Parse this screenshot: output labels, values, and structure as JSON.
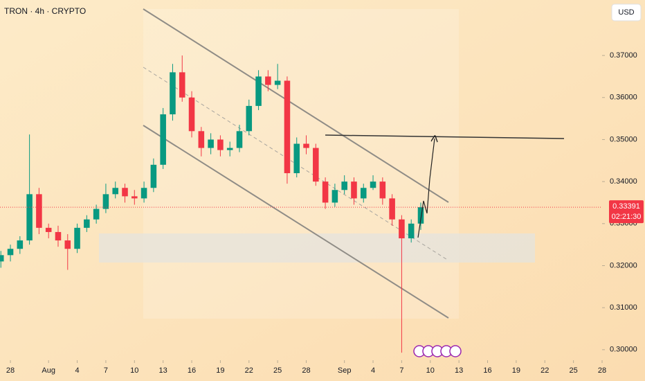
{
  "chart_data": {
    "type": "candlestick",
    "title": "TRON · 4h · CRYPTO",
    "currency": "USD",
    "x": [
      -1,
      0,
      1,
      2,
      3,
      4,
      5,
      6,
      7,
      8,
      9,
      10,
      11,
      12,
      13,
      14,
      15,
      16,
      17,
      18,
      19,
      20,
      21,
      22,
      23,
      24,
      25,
      26,
      27,
      28,
      29,
      30,
      31,
      32,
      33,
      34,
      35,
      36,
      37,
      38,
      39,
      40,
      41,
      42,
      43
    ],
    "open": [
      0.321,
      0.3225,
      0.324,
      0.326,
      0.337,
      0.329,
      0.328,
      0.326,
      0.324,
      0.329,
      0.331,
      0.3335,
      0.337,
      0.3385,
      0.3365,
      0.336,
      0.3385,
      0.344,
      0.356,
      0.366,
      0.36,
      0.352,
      0.348,
      0.35,
      0.3475,
      0.348,
      0.352,
      0.358,
      0.365,
      0.363,
      0.364,
      0.342,
      0.349,
      0.348,
      0.34,
      0.335,
      0.338,
      0.34,
      0.336,
      0.3385,
      0.34,
      0.336,
      0.331,
      0.3265,
      0.33
    ],
    "high": [
      0.3235,
      0.325,
      0.327,
      0.3512,
      0.3385,
      0.33,
      0.3295,
      0.3275,
      0.33,
      0.332,
      0.3345,
      0.3395,
      0.34,
      0.3395,
      0.338,
      0.34,
      0.3455,
      0.3575,
      0.368,
      0.37,
      0.3615,
      0.353,
      0.3515,
      0.351,
      0.3495,
      0.3535,
      0.3595,
      0.3665,
      0.3665,
      0.368,
      0.365,
      0.3505,
      0.351,
      0.349,
      0.341,
      0.3395,
      0.3415,
      0.341,
      0.3395,
      0.3415,
      0.341,
      0.337,
      0.332,
      0.331,
      0.335
    ],
    "low": [
      0.3195,
      0.321,
      0.3228,
      0.325,
      0.3275,
      0.3265,
      0.3245,
      0.319,
      0.323,
      0.328,
      0.33,
      0.3325,
      0.336,
      0.335,
      0.3345,
      0.335,
      0.3375,
      0.343,
      0.3545,
      0.359,
      0.3505,
      0.346,
      0.3465,
      0.346,
      0.346,
      0.347,
      0.351,
      0.357,
      0.3615,
      0.362,
      0.3395,
      0.341,
      0.3465,
      0.339,
      0.3335,
      0.334,
      0.337,
      0.3345,
      0.335,
      0.338,
      0.3345,
      0.3295,
      0.2993,
      0.3255,
      0.3285
    ],
    "close": [
      0.3225,
      0.324,
      0.326,
      0.337,
      0.329,
      0.328,
      0.326,
      0.324,
      0.329,
      0.331,
      0.3335,
      0.337,
      0.3385,
      0.3365,
      0.336,
      0.3385,
      0.344,
      0.356,
      0.366,
      0.36,
      0.352,
      0.348,
      0.35,
      0.3475,
      0.348,
      0.352,
      0.358,
      0.365,
      0.363,
      0.364,
      0.342,
      0.349,
      0.348,
      0.34,
      0.335,
      0.338,
      0.34,
      0.336,
      0.3385,
      0.34,
      0.336,
      0.331,
      0.3265,
      0.33,
      0.3339
    ],
    "up_color": "#089981",
    "down_color": "#f23645",
    "xlim": [
      -1.09,
      62
    ],
    "ylim": [
      0.2975,
      0.3832
    ],
    "xticks": [
      {
        "value": 0,
        "label": "28"
      },
      {
        "value": 4,
        "label": "Aug"
      },
      {
        "value": 7,
        "label": "4"
      },
      {
        "value": 10,
        "label": "7"
      },
      {
        "value": 13,
        "label": "10"
      },
      {
        "value": 16,
        "label": "13"
      },
      {
        "value": 19,
        "label": "16"
      },
      {
        "value": 22,
        "label": "19"
      },
      {
        "value": 25,
        "label": "22"
      },
      {
        "value": 28,
        "label": "25"
      },
      {
        "value": 31,
        "label": "28"
      },
      {
        "value": 35,
        "label": "Sep"
      },
      {
        "value": 38,
        "label": "4"
      },
      {
        "value": 41,
        "label": "7"
      },
      {
        "value": 44,
        "label": "10"
      },
      {
        "value": 47,
        "label": "13"
      },
      {
        "value": 50,
        "label": "16"
      },
      {
        "value": 53,
        "label": "19"
      },
      {
        "value": 56,
        "label": "22"
      },
      {
        "value": 59,
        "label": "25"
      },
      {
        "value": 62,
        "label": "28"
      }
    ],
    "yticks": [
      {
        "value": 0.3,
        "label": "0.30000"
      },
      {
        "value": 0.31,
        "label": "0.31000"
      },
      {
        "value": 0.32,
        "label": "0.32000"
      },
      {
        "value": 0.33,
        "label": "0.33000"
      },
      {
        "value": 0.34,
        "label": "0.34000"
      },
      {
        "value": 0.35,
        "label": "0.35000"
      },
      {
        "value": 0.36,
        "label": "0.36000"
      },
      {
        "value": 0.37,
        "label": "0.37000"
      }
    ],
    "last_price": 0.33391,
    "countdown": "02:21:30"
  }
}
